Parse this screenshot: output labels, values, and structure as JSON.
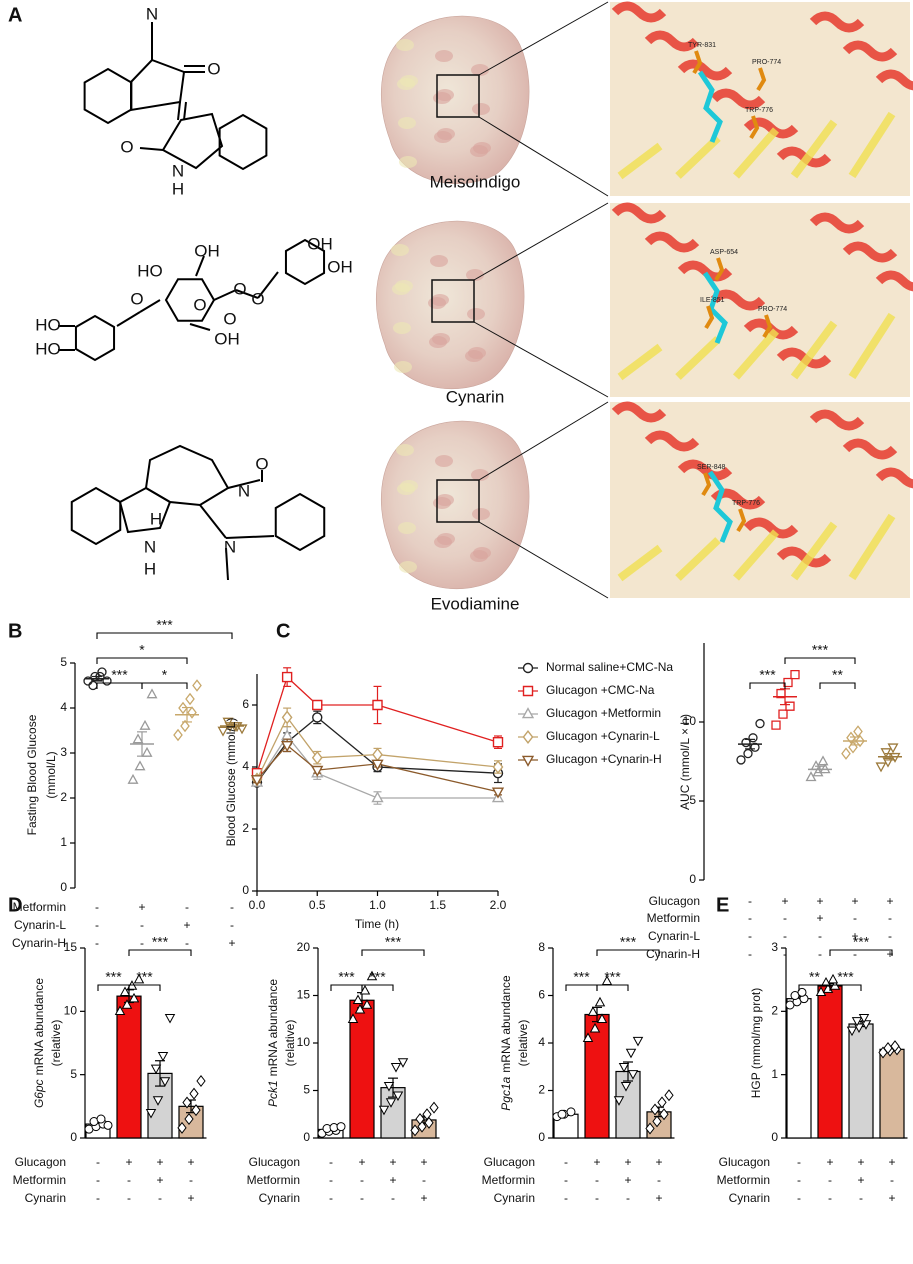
{
  "panel_labels": [
    "A",
    "B",
    "C",
    "D",
    "E"
  ],
  "molecules": [
    {
      "name": "Meisoindigo",
      "atoms": [
        "N",
        "O",
        "O",
        "N",
        "H"
      ],
      "residues": [
        "TYR-831",
        "PRO-774",
        "TRP-776"
      ]
    },
    {
      "name": "Cynarin",
      "atoms": [
        "OH",
        "HO",
        "O",
        "O",
        "OH",
        "OH",
        "O",
        "O",
        "OH",
        "HO",
        "HO",
        "O"
      ],
      "residues": [
        "ASP-654",
        "ILE-851",
        "PRO-774"
      ]
    },
    {
      "name": "Evodiamine",
      "atoms": [
        "O",
        "H",
        "N",
        "N",
        "N",
        "H"
      ],
      "residues": [
        "SER-848",
        "TRP-776"
      ]
    }
  ],
  "chart_data": [
    {
      "type": "dot",
      "ylabel": [
        "Fasting Blood Glucose",
        "(mmol/L)"
      ],
      "ylim": [
        0,
        5
      ],
      "yticks": [
        0,
        1,
        2,
        3,
        4,
        5
      ],
      "groups": [
        {
          "color": "#222222",
          "marker": "circle",
          "points": [
            4.6,
            4.7,
            4.8,
            4.5,
            4.7,
            4.6
          ],
          "mean": 4.65,
          "sem": 0.05
        },
        {
          "color": "#9a9a9a",
          "marker": "triangle",
          "points": [
            2.4,
            2.7,
            3.0,
            3.3,
            3.6,
            4.3
          ],
          "mean": 3.2,
          "sem": 0.27
        },
        {
          "color": "#c8a86b",
          "marker": "diamond",
          "points": [
            3.4,
            3.6,
            3.9,
            4.0,
            4.2,
            4.5
          ],
          "mean": 3.85,
          "sem": 0.16
        },
        {
          "color": "#9c7a3c",
          "marker": "triangle-down",
          "points": [
            3.5,
            3.6,
            3.6,
            3.7,
            3.6,
            3.55
          ],
          "mean": 3.6,
          "sem": 0.03
        }
      ],
      "conditions": [
        {
          "name": "Metformin",
          "signs": [
            "-",
            "+",
            "-",
            "-"
          ]
        },
        {
          "name": "Cynarin-L",
          "signs": [
            "-",
            "-",
            "+",
            "-"
          ]
        },
        {
          "name": "Cynarin-H",
          "signs": [
            "-",
            "-",
            "-",
            "+"
          ]
        }
      ],
      "significance": [
        {
          "pair": [
            0,
            3
          ],
          "label": "***"
        },
        {
          "pair": [
            0,
            2
          ],
          "label": "*"
        },
        {
          "pair": [
            0,
            1
          ],
          "label": "***"
        },
        {
          "pair": [
            1,
            2
          ],
          "label": "*"
        }
      ]
    },
    {
      "type": "line",
      "xlabel": "Time (h)",
      "ylabel": "Blood Glucose (mmol/L)",
      "x": [
        0,
        0.25,
        0.5,
        1,
        2
      ],
      "xlim": [
        0,
        2
      ],
      "xticks": [
        {
          "value": 0,
          "label": "0.0"
        },
        {
          "value": 0.5,
          "label": "0.5"
        },
        {
          "value": 1,
          "label": "1.0"
        },
        {
          "value": 1.5,
          "label": "1.5"
        },
        {
          "value": 2,
          "label": "2.0"
        }
      ],
      "ylim": [
        0,
        7
      ],
      "yticks": [
        0,
        2,
        4,
        6
      ],
      "series": [
        {
          "name": "Normal saline+CMC-Na",
          "color": "#222222",
          "marker": "circle",
          "values": [
            3.5,
            4.8,
            5.6,
            4.0,
            3.8
          ],
          "errors": [
            0.1,
            0.3,
            0.2,
            0.15,
            0.3
          ]
        },
        {
          "name": "Glucagon +CMC-Na",
          "color": "#e02020",
          "marker": "square",
          "values": [
            3.8,
            6.9,
            6.0,
            6.0,
            4.8
          ],
          "errors": [
            0.1,
            0.3,
            0.1,
            0.6,
            0.2
          ]
        },
        {
          "name": "Glucagon +Metformin",
          "color": "#a8a8a8",
          "marker": "triangle",
          "values": [
            3.5,
            5.0,
            3.8,
            3.0,
            3.0
          ],
          "errors": [
            0.1,
            0.3,
            0.2,
            0.2,
            0.1
          ]
        },
        {
          "name": "Glucagon +Cynarin-L",
          "color": "#c2a36a",
          "marker": "diamond",
          "values": [
            3.6,
            5.6,
            4.3,
            4.4,
            4.0
          ],
          "errors": [
            0.1,
            0.3,
            0.2,
            0.2,
            0.2
          ]
        },
        {
          "name": "Glucagon +Cynarin-H",
          "color": "#8b5a2b",
          "marker": "triangle-down",
          "values": [
            3.6,
            4.7,
            3.9,
            4.1,
            3.2
          ],
          "errors": [
            0.1,
            0.2,
            0.1,
            0.1,
            0.1
          ]
        }
      ]
    },
    {
      "type": "dot",
      "ylabel": [
        "AUC (mmol/L × h)"
      ],
      "ylim": [
        0,
        15
      ],
      "yticks": [
        0,
        5,
        10
      ],
      "groups": [
        {
          "color": "#222222",
          "marker": "circle",
          "points": [
            7.6,
            8.0,
            8.4,
            8.7,
            9.0,
            9.9
          ],
          "mean": 8.6,
          "sem": 0.3
        },
        {
          "color": "#e02020",
          "marker": "square",
          "points": [
            9.8,
            10.5,
            11.0,
            11.8,
            12.5,
            13.0
          ],
          "mean": 11.6,
          "sem": 0.5
        },
        {
          "color": "#9a9a9a",
          "marker": "triangle",
          "points": [
            6.5,
            6.8,
            7.0,
            7.2,
            7.5
          ],
          "mean": 7.0,
          "sem": 0.2
        },
        {
          "color": "#c8a86b",
          "marker": "diamond",
          "points": [
            8.0,
            8.4,
            8.8,
            9.0,
            9.4
          ],
          "mean": 8.8,
          "sem": 0.25
        },
        {
          "color": "#9c7a3c",
          "marker": "triangle-down",
          "points": [
            7.2,
            7.5,
            7.8,
            8.1,
            8.4
          ],
          "mean": 7.8,
          "sem": 0.2
        }
      ],
      "conditions": [
        {
          "name": "Glucagon",
          "signs": [
            "-",
            "+",
            "+",
            "+",
            "+"
          ]
        },
        {
          "name": "Metformin",
          "signs": [
            "-",
            "-",
            "+",
            "-",
            "-"
          ]
        },
        {
          "name": "Cynarin-L",
          "signs": [
            "-",
            "-",
            "-",
            "+",
            "-"
          ]
        },
        {
          "name": "Cynarin-H",
          "signs": [
            "-",
            "-",
            "-",
            "-",
            "+"
          ]
        }
      ],
      "significance": [
        {
          "pair": [
            0,
            1
          ],
          "label": "***"
        },
        {
          "pair": [
            1,
            3
          ],
          "label": "***"
        },
        {
          "pair": [
            2,
            3
          ],
          "label": "**"
        }
      ]
    },
    {
      "type": "bar",
      "ylabel_gene": "G6pc",
      "ylabel": [
        "mRNA abundance",
        "(relative)"
      ],
      "ylim": [
        0,
        15
      ],
      "yticks": [
        0,
        5,
        10,
        15
      ],
      "groups": [
        {
          "color": "#ffffff",
          "marker": "circle",
          "points": [
            0.7,
            0.9,
            1.1,
            1.3,
            1.5,
            1.0
          ],
          "mean": 1.1,
          "sem": 0.1
        },
        {
          "color": "#ee1111",
          "marker": "triangle",
          "points": [
            10.0,
            10.5,
            11.0,
            11.5,
            12.0,
            12.5
          ],
          "mean": 11.2,
          "sem": 0.5
        },
        {
          "color": "#d3d3d3",
          "marker": "triangle-down",
          "points": [
            2.0,
            3.0,
            4.5,
            5.5,
            6.5,
            9.5
          ],
          "mean": 5.1,
          "sem": 1.0
        },
        {
          "color": "#d8b89c",
          "marker": "diamond",
          "points": [
            0.8,
            1.5,
            2.2,
            2.8,
            3.5,
            4.5
          ],
          "mean": 2.5,
          "sem": 0.5
        }
      ],
      "conditions": [
        {
          "name": "Glucagon",
          "signs": [
            "-",
            "+",
            "+",
            "+"
          ]
        },
        {
          "name": "Metformin",
          "signs": [
            "-",
            "-",
            "+",
            "-"
          ]
        },
        {
          "name": "Cynarin",
          "signs": [
            "-",
            "-",
            "-",
            "+"
          ]
        }
      ],
      "significance": [
        {
          "pair": [
            0,
            1
          ],
          "label": "***"
        },
        {
          "pair": [
            1,
            2
          ],
          "label": "***"
        },
        {
          "pair": [
            1,
            3
          ],
          "label": "***"
        }
      ]
    },
    {
      "type": "bar",
      "ylabel_gene": "Pck1",
      "ylabel": [
        "mRNA abundance",
        "(relative)"
      ],
      "ylim": [
        0,
        20
      ],
      "yticks": [
        0,
        5,
        10,
        15,
        20
      ],
      "groups": [
        {
          "color": "#ffffff",
          "marker": "circle",
          "points": [
            0.5,
            0.7,
            0.8,
            1.0,
            1.1,
            1.2
          ],
          "mean": 0.9,
          "sem": 0.1
        },
        {
          "color": "#ee1111",
          "marker": "triangle",
          "points": [
            12.5,
            13.5,
            14.0,
            14.5,
            15.5,
            17.0
          ],
          "mean": 14.5,
          "sem": 0.8
        },
        {
          "color": "#d3d3d3",
          "marker": "triangle-down",
          "points": [
            3.0,
            3.8,
            4.5,
            5.5,
            7.5,
            8.0
          ],
          "mean": 5.3,
          "sem": 1.0
        },
        {
          "color": "#d8b89c",
          "marker": "diamond",
          "points": [
            0.8,
            1.2,
            1.6,
            2.0,
            2.5,
            3.2
          ],
          "mean": 1.9,
          "sem": 0.4
        }
      ],
      "conditions": [
        {
          "name": "Glucagon",
          "signs": [
            "-",
            "+",
            "+",
            "+"
          ]
        },
        {
          "name": "Metformin",
          "signs": [
            "-",
            "-",
            "+",
            "-"
          ]
        },
        {
          "name": "Cynarin",
          "signs": [
            "-",
            "-",
            "-",
            "+"
          ]
        }
      ],
      "significance": [
        {
          "pair": [
            0,
            1
          ],
          "label": "***"
        },
        {
          "pair": [
            1,
            2
          ],
          "label": "***"
        },
        {
          "pair": [
            1,
            3
          ],
          "label": "***"
        }
      ]
    },
    {
      "type": "bar",
      "ylabel_gene": "Pgc1a",
      "ylabel": [
        "mRNA abundance",
        "(relative)"
      ],
      "ylim": [
        0,
        8
      ],
      "yticks": [
        0,
        2,
        4,
        6,
        8
      ],
      "groups": [
        {
          "color": "#ffffff",
          "marker": "circle",
          "points": [
            0.9,
            1.0,
            1.1,
            1.0
          ],
          "mean": 1.0,
          "sem": 0.05
        },
        {
          "color": "#ee1111",
          "marker": "triangle",
          "points": [
            4.2,
            4.6,
            5.0,
            5.3,
            5.7,
            6.6
          ],
          "mean": 5.2,
          "sem": 0.3
        },
        {
          "color": "#d3d3d3",
          "marker": "triangle-down",
          "points": [
            1.6,
            2.2,
            2.7,
            3.0,
            3.6,
            4.1
          ],
          "mean": 2.8,
          "sem": 0.4
        },
        {
          "color": "#d8b89c",
          "marker": "diamond",
          "points": [
            0.4,
            0.7,
            1.0,
            1.2,
            1.5,
            1.8
          ],
          "mean": 1.1,
          "sem": 0.2
        }
      ],
      "conditions": [
        {
          "name": "Glucagon",
          "signs": [
            "-",
            "+",
            "+",
            "+"
          ]
        },
        {
          "name": "Metformin",
          "signs": [
            "-",
            "-",
            "+",
            "-"
          ]
        },
        {
          "name": "Cynarin",
          "signs": [
            "-",
            "-",
            "-",
            "+"
          ]
        }
      ],
      "significance": [
        {
          "pair": [
            0,
            1
          ],
          "label": "***"
        },
        {
          "pair": [
            1,
            2
          ],
          "label": "***"
        },
        {
          "pair": [
            1,
            3
          ],
          "label": "***"
        }
      ]
    },
    {
      "type": "bar",
      "ylabel": [
        "HGP  (mmol/mg prot)"
      ],
      "ylim": [
        0,
        3
      ],
      "yticks": [
        0,
        1,
        2,
        3
      ],
      "groups": [
        {
          "color": "#ffffff",
          "marker": "circle",
          "points": [
            2.1,
            2.15,
            2.2,
            2.25,
            2.3
          ],
          "mean": 2.2,
          "sem": 0.04
        },
        {
          "color": "#ee1111",
          "marker": "triangle",
          "points": [
            2.3,
            2.35,
            2.4,
            2.45,
            2.5
          ],
          "mean": 2.4,
          "sem": 0.04
        },
        {
          "color": "#d3d3d3",
          "marker": "triangle-down",
          "points": [
            1.7,
            1.75,
            1.8,
            1.85,
            1.9
          ],
          "mean": 1.8,
          "sem": 0.04
        },
        {
          "color": "#d8b89c",
          "marker": "diamond",
          "points": [
            1.35,
            1.38,
            1.4,
            1.42,
            1.45
          ],
          "mean": 1.4,
          "sem": 0.02
        }
      ],
      "conditions": [
        {
          "name": "Glucagon",
          "signs": [
            "-",
            "+",
            "+",
            "+"
          ]
        },
        {
          "name": "Metformin",
          "signs": [
            "-",
            "-",
            "+",
            "-"
          ]
        },
        {
          "name": "Cynarin",
          "signs": [
            "-",
            "-",
            "-",
            "+"
          ]
        }
      ],
      "significance": [
        {
          "pair": [
            0,
            1
          ],
          "label": "**"
        },
        {
          "pair": [
            1,
            2
          ],
          "label": "***"
        },
        {
          "pair": [
            1,
            3
          ],
          "label": "***"
        }
      ]
    }
  ]
}
